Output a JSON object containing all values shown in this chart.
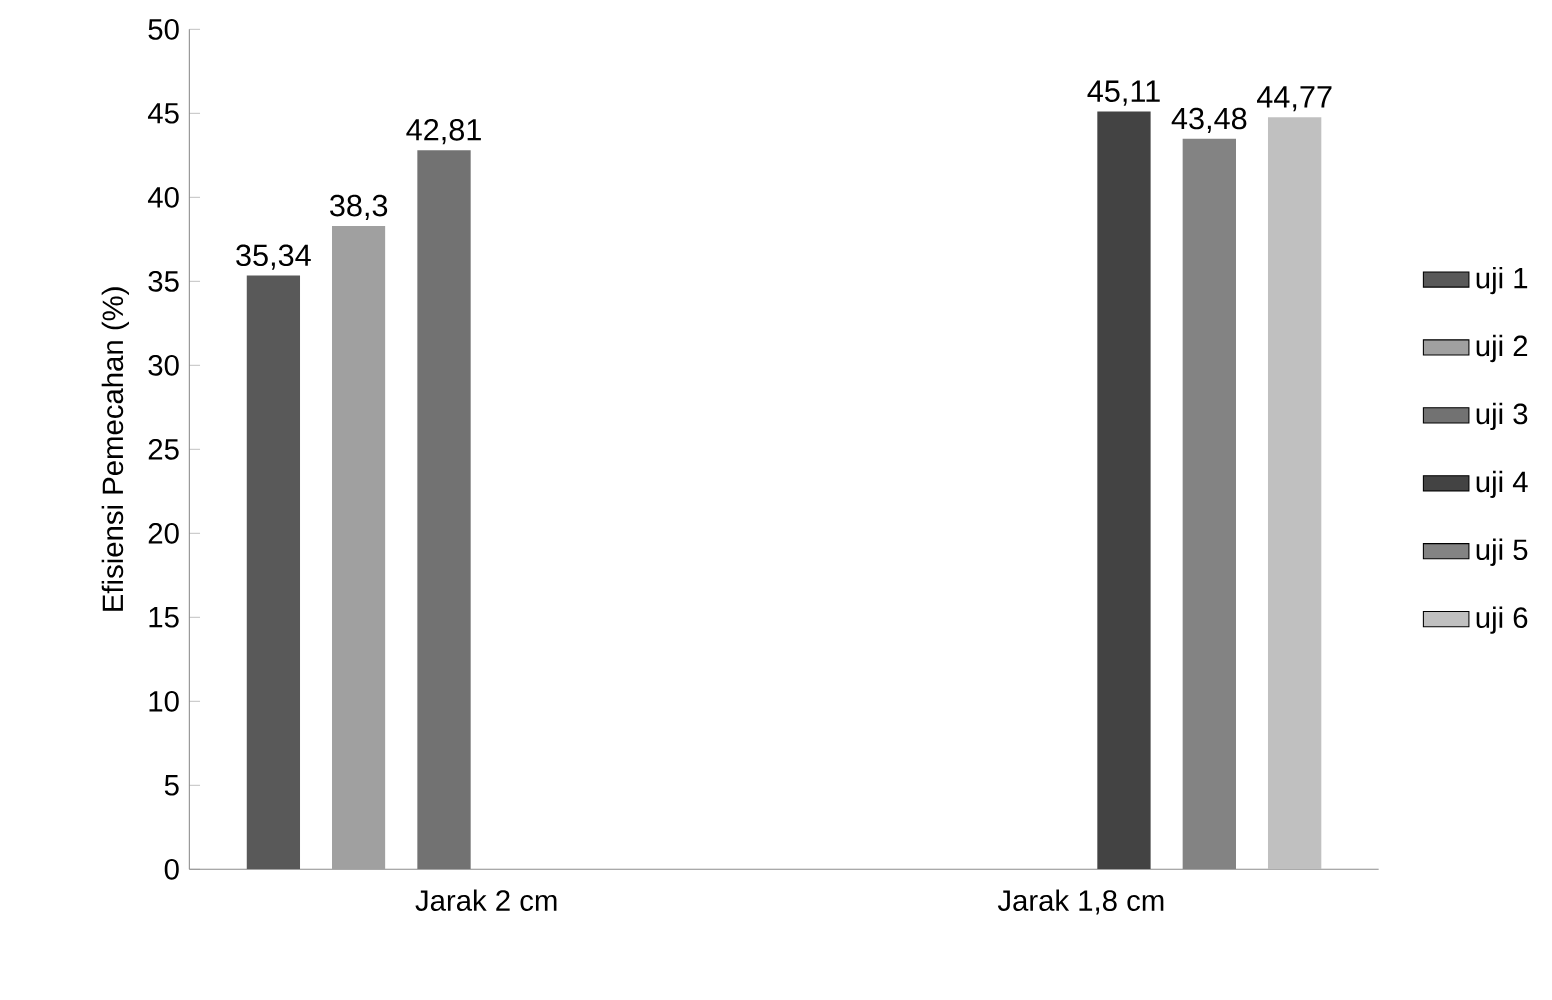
{
  "chart_data": {
    "type": "bar",
    "ylabel": "Efisiensi  Pemecahan (%)",
    "categories": [
      "Jarak 2 cm",
      "Jarak 1,8 cm"
    ],
    "series": [
      {
        "name": "uji 1",
        "color": "#595959",
        "values": [
          35.34,
          null
        ],
        "value_labels": [
          "35,34",
          null
        ]
      },
      {
        "name": "uji 2",
        "color": "#a0a0a0",
        "values": [
          38.3,
          null
        ],
        "value_labels": [
          "38,3",
          null
        ]
      },
      {
        "name": "uji 3",
        "color": "#727272",
        "values": [
          42.81,
          null
        ],
        "value_labels": [
          "42,81",
          null
        ]
      },
      {
        "name": "uji 4",
        "color": "#434343",
        "values": [
          null,
          45.11
        ],
        "value_labels": [
          null,
          "45,11"
        ]
      },
      {
        "name": "uji 5",
        "color": "#838383",
        "values": [
          null,
          43.48
        ],
        "value_labels": [
          null,
          "43,48"
        ]
      },
      {
        "name": "uji 6",
        "color": "#c0c0c0",
        "values": [
          null,
          44.77
        ],
        "value_labels": [
          null,
          "44,77"
        ]
      }
    ],
    "ylim": [
      0,
      50
    ],
    "yticks": [
      0,
      5,
      10,
      15,
      20,
      25,
      30,
      35,
      40,
      45,
      50
    ],
    "grid": false,
    "legend": "right"
  }
}
